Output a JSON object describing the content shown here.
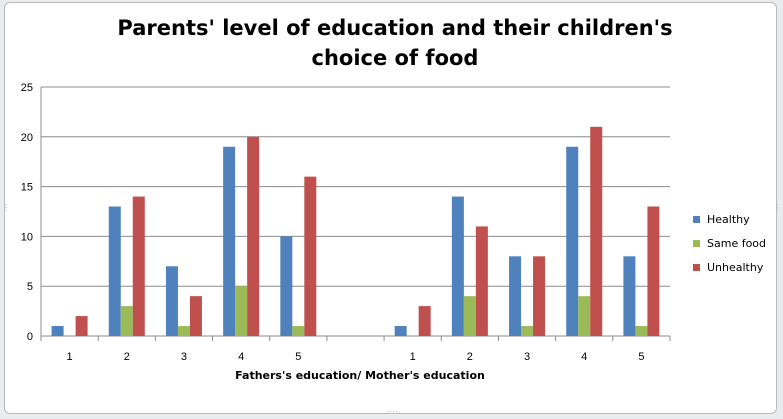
{
  "chart_data": {
    "type": "bar",
    "title": "Parents' level of education and their children's choice of food",
    "xlabel": "Fathers's education/ Mother's education",
    "ylabel": "",
    "categories": [
      "1",
      "2",
      "3",
      "4",
      "5",
      "",
      "1",
      "2",
      "3",
      "4",
      "5"
    ],
    "ylim": [
      0,
      25
    ],
    "yticks": [
      0,
      5,
      10,
      15,
      20,
      25
    ],
    "grid": true,
    "legend_position": "right",
    "series": [
      {
        "name": "Healthy",
        "color": "#4f81bd",
        "values": [
          1,
          13,
          7,
          19,
          10,
          null,
          1,
          14,
          8,
          19,
          8
        ]
      },
      {
        "name": "Same food",
        "color": "#9bbb59",
        "values": [
          0,
          3,
          1,
          5,
          1,
          null,
          0,
          4,
          1,
          4,
          1
        ]
      },
      {
        "name": "Unhealthy",
        "color": "#c0504d",
        "values": [
          2,
          14,
          4,
          20,
          16,
          null,
          3,
          11,
          8,
          21,
          13
        ]
      }
    ]
  }
}
